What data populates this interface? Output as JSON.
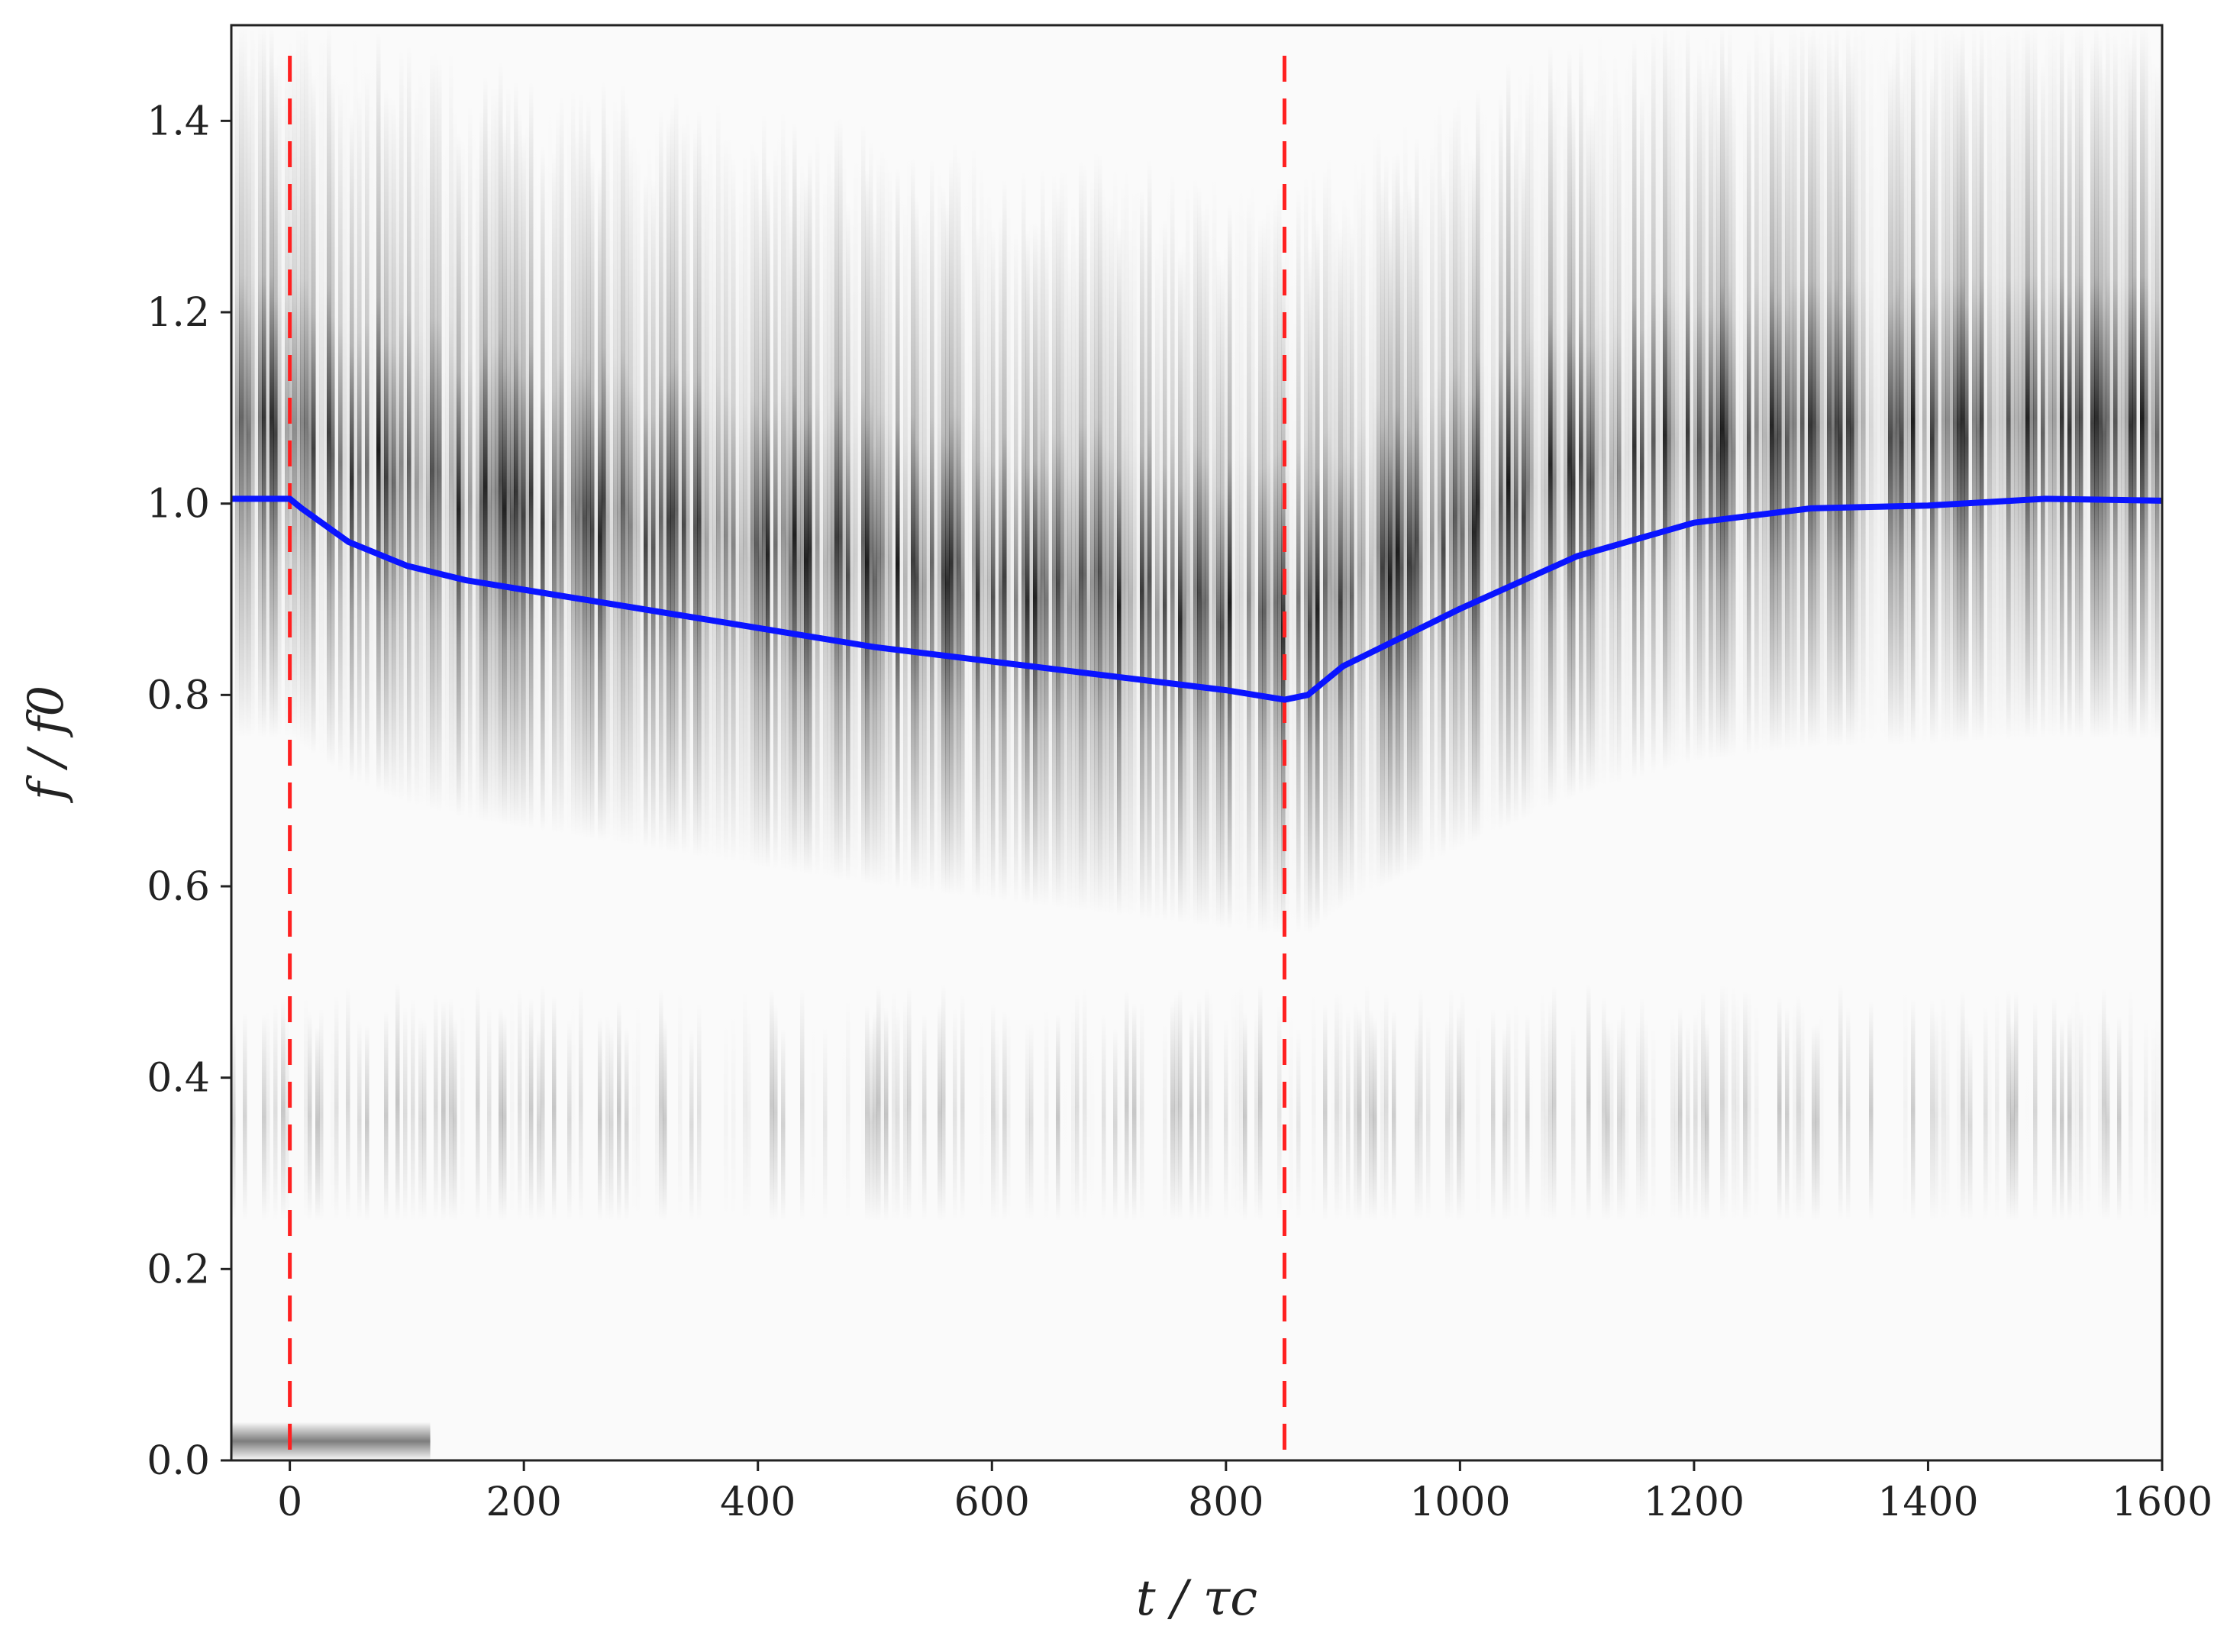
{
  "chart_data": {
    "type": "heatmap",
    "title": "",
    "xlabel": "t / τc",
    "ylabel": "f / f0",
    "xlim": [
      -50,
      1600
    ],
    "ylim": [
      0.0,
      1.5
    ],
    "x_ticks": [
      0,
      200,
      400,
      600,
      800,
      1000,
      1200,
      1400,
      1600
    ],
    "x_tick_labels": [
      "0",
      "200",
      "400",
      "600",
      "800",
      "1000",
      "1200",
      "1400",
      "1600"
    ],
    "y_ticks": [
      0.0,
      0.2,
      0.4,
      0.6,
      0.8,
      1.0,
      1.2,
      1.4
    ],
    "y_tick_labels": [
      "0.0",
      "0.2",
      "0.4",
      "0.6",
      "0.8",
      "1.0",
      "1.2",
      "1.4"
    ],
    "grid": false,
    "colormap": "Greys",
    "vertical_markers": [
      {
        "x": 0,
        "color": "#ff2020",
        "style": "dashed"
      },
      {
        "x": 850,
        "color": "#ff2020",
        "style": "dashed"
      }
    ],
    "series": [
      {
        "color": "#0a14ff",
        "x": [
          -50,
          0,
          10,
          50,
          100,
          150,
          200,
          300,
          400,
          500,
          600,
          700,
          800,
          850,
          870,
          900,
          1000,
          1100,
          1200,
          1300,
          1400,
          1500,
          1600
        ],
        "y": [
          1.005,
          1.005,
          0.995,
          0.96,
          0.935,
          0.92,
          0.91,
          0.89,
          0.87,
          0.85,
          0.835,
          0.82,
          0.805,
          0.795,
          0.8,
          0.83,
          0.89,
          0.945,
          0.98,
          0.995,
          0.998,
          1.005,
          1.003
        ]
      }
    ]
  }
}
